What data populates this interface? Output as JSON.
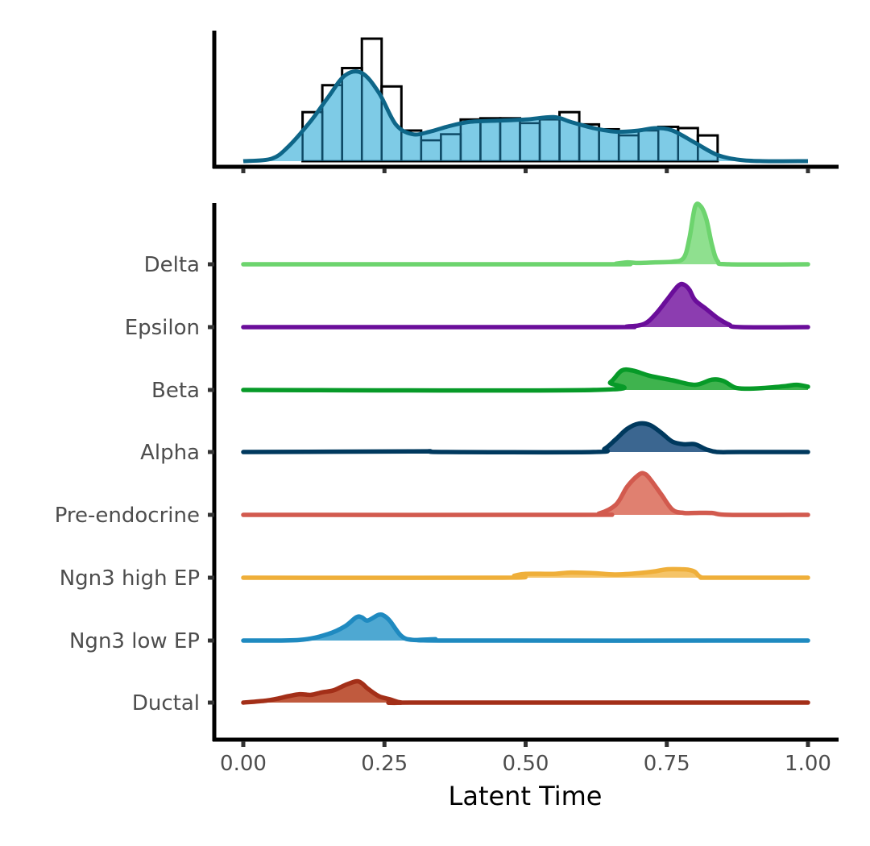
{
  "chart_data": [
    {
      "type": "bar",
      "panel": "histogram",
      "title": "",
      "bin_width": 0.035,
      "bins": [
        {
          "x0": 0.105,
          "x1": 0.14,
          "count": 0.4
        },
        {
          "x0": 0.14,
          "x1": 0.175,
          "count": 0.62
        },
        {
          "x0": 0.175,
          "x1": 0.21,
          "count": 0.76
        },
        {
          "x0": 0.21,
          "x1": 0.245,
          "count": 1.0
        },
        {
          "x0": 0.245,
          "x1": 0.28,
          "count": 0.61
        },
        {
          "x0": 0.28,
          "x1": 0.315,
          "count": 0.25
        },
        {
          "x0": 0.315,
          "x1": 0.35,
          "count": 0.17
        },
        {
          "x0": 0.35,
          "x1": 0.385,
          "count": 0.22
        },
        {
          "x0": 0.385,
          "x1": 0.42,
          "count": 0.34
        },
        {
          "x0": 0.42,
          "x1": 0.455,
          "count": 0.35
        },
        {
          "x0": 0.455,
          "x1": 0.49,
          "count": 0.35
        },
        {
          "x0": 0.49,
          "x1": 0.525,
          "count": 0.31
        },
        {
          "x0": 0.525,
          "x1": 0.56,
          "count": 0.34
        },
        {
          "x0": 0.56,
          "x1": 0.595,
          "count": 0.4
        },
        {
          "x0": 0.595,
          "x1": 0.63,
          "count": 0.3
        },
        {
          "x0": 0.63,
          "x1": 0.665,
          "count": 0.26
        },
        {
          "x0": 0.665,
          "x1": 0.7,
          "count": 0.21
        },
        {
          "x0": 0.7,
          "x1": 0.735,
          "count": 0.25
        },
        {
          "x0": 0.735,
          "x1": 0.77,
          "count": 0.28
        },
        {
          "x0": 0.77,
          "x1": 0.805,
          "count": 0.27
        },
        {
          "x0": 0.805,
          "x1": 0.84,
          "count": 0.21
        }
      ],
      "density": {
        "x": [
          0.0,
          0.05,
          0.08,
          0.12,
          0.15,
          0.18,
          0.21,
          0.24,
          0.27,
          0.3,
          0.33,
          0.36,
          0.4,
          0.45,
          0.5,
          0.55,
          0.58,
          0.62,
          0.66,
          0.7,
          0.73,
          0.76,
          0.8,
          0.84,
          0.88,
          0.92,
          1.0
        ],
        "y": [
          0.0,
          0.02,
          0.12,
          0.33,
          0.52,
          0.7,
          0.72,
          0.56,
          0.3,
          0.22,
          0.24,
          0.28,
          0.32,
          0.33,
          0.34,
          0.36,
          0.32,
          0.27,
          0.24,
          0.25,
          0.27,
          0.25,
          0.15,
          0.05,
          0.01,
          0.0,
          0.0
        ]
      },
      "xlim": [
        -0.05,
        1.05
      ],
      "ylim": [
        0,
        1.0
      ]
    },
    {
      "type": "area",
      "panel": "ridgeline",
      "xlabel": "Latent Time",
      "ylabel": "",
      "xlim": [
        -0.05,
        1.05
      ],
      "xticks": [
        0.0,
        0.25,
        0.5,
        0.75,
        1.0
      ],
      "xtick_labels": [
        "0.00",
        "0.25",
        "0.50",
        "0.75",
        "1.00"
      ],
      "categories": [
        "Delta",
        "Epsilon",
        "Beta",
        "Alpha",
        "Pre-endocrine",
        "Ngn3 high EP",
        "Ngn3 low EP",
        "Ductal"
      ],
      "series": [
        {
          "name": "Delta",
          "color": "#6dd46e",
          "fill": "#8fe08f",
          "x": [
            0.0,
            0.63,
            0.66,
            0.68,
            0.7,
            0.73,
            0.76,
            0.78,
            0.79,
            0.8,
            0.81,
            0.82,
            0.83,
            0.84,
            0.86,
            1.0
          ],
          "y": [
            0.0,
            0.0,
            0.01,
            0.03,
            0.02,
            0.03,
            0.04,
            0.1,
            0.4,
            0.89,
            0.9,
            0.7,
            0.3,
            0.05,
            0.0,
            0.0
          ]
        },
        {
          "name": "Epsilon",
          "color": "#6a0d9a",
          "fill": "#8c3db0",
          "x": [
            0.0,
            0.63,
            0.68,
            0.71,
            0.73,
            0.75,
            0.77,
            0.78,
            0.79,
            0.8,
            0.82,
            0.84,
            0.86,
            0.88,
            1.0
          ],
          "y": [
            0.0,
            0.0,
            0.01,
            0.05,
            0.2,
            0.42,
            0.64,
            0.66,
            0.58,
            0.42,
            0.28,
            0.14,
            0.04,
            0.0,
            0.0
          ]
        },
        {
          "name": "Beta",
          "color": "#079a28",
          "fill": "#3fb34e",
          "x": [
            0.0,
            0.62,
            0.65,
            0.67,
            0.69,
            0.72,
            0.76,
            0.8,
            0.83,
            0.85,
            0.87,
            0.89,
            0.92,
            0.96,
            0.98,
            1.0
          ],
          "y": [
            0.0,
            0.0,
            0.12,
            0.3,
            0.3,
            0.22,
            0.15,
            0.08,
            0.16,
            0.14,
            0.04,
            0.02,
            0.03,
            0.06,
            0.08,
            0.05
          ]
        },
        {
          "name": "Alpha",
          "color": "#00395e",
          "fill": "#3b6690",
          "x": [
            0.0,
            0.3,
            0.33,
            0.36,
            0.62,
            0.64,
            0.66,
            0.68,
            0.7,
            0.72,
            0.74,
            0.76,
            0.78,
            0.8,
            0.82,
            0.84,
            0.88,
            1.0
          ],
          "y": [
            0.0,
            0.01,
            0.01,
            0.0,
            0.0,
            0.05,
            0.2,
            0.36,
            0.44,
            0.42,
            0.3,
            0.16,
            0.12,
            0.12,
            0.04,
            0.0,
            0.0,
            0.0
          ]
        },
        {
          "name": "Pre-endocrine",
          "color": "#d25a4e",
          "fill": "#e08070",
          "x": [
            0.0,
            0.6,
            0.63,
            0.66,
            0.68,
            0.7,
            0.71,
            0.72,
            0.74,
            0.76,
            0.78,
            0.8,
            0.83,
            0.86,
            1.0
          ],
          "y": [
            0.0,
            0.0,
            0.02,
            0.16,
            0.44,
            0.62,
            0.64,
            0.56,
            0.32,
            0.08,
            0.03,
            0.03,
            0.03,
            0.0,
            0.0
          ]
        },
        {
          "name": "Ngn3 high EP",
          "color": "#efaf3a",
          "fill": "#f5c468",
          "x": [
            0.0,
            0.46,
            0.48,
            0.5,
            0.55,
            0.58,
            0.62,
            0.66,
            0.7,
            0.73,
            0.75,
            0.78,
            0.79,
            0.8,
            0.81,
            0.83,
            1.0
          ],
          "y": [
            0.0,
            0.0,
            0.03,
            0.06,
            0.06,
            0.08,
            0.07,
            0.05,
            0.07,
            0.1,
            0.13,
            0.13,
            0.12,
            0.09,
            0.01,
            0.0,
            0.0
          ]
        },
        {
          "name": "Ngn3 low EP",
          "color": "#1f8ac0",
          "fill": "#4ea8d2",
          "x": [
            0.0,
            0.1,
            0.15,
            0.18,
            0.2,
            0.21,
            0.22,
            0.24,
            0.25,
            0.26,
            0.28,
            0.3,
            0.34,
            0.36,
            1.0
          ],
          "y": [
            0.0,
            0.01,
            0.1,
            0.22,
            0.36,
            0.36,
            0.31,
            0.4,
            0.38,
            0.3,
            0.07,
            0.01,
            0.02,
            0.0,
            0.0
          ]
        },
        {
          "name": "Ductal",
          "color": "#a32f18",
          "fill": "#c05a3e",
          "x": [
            0.0,
            0.04,
            0.06,
            0.08,
            0.1,
            0.12,
            0.14,
            0.16,
            0.18,
            0.2,
            0.21,
            0.22,
            0.24,
            0.26,
            0.28,
            0.32,
            1.0
          ],
          "y": [
            0.0,
            0.03,
            0.06,
            0.1,
            0.13,
            0.12,
            0.16,
            0.19,
            0.27,
            0.33,
            0.3,
            0.22,
            0.1,
            0.05,
            0.0,
            0.0,
            0.0
          ]
        }
      ],
      "grid": false,
      "legend": "none"
    }
  ]
}
